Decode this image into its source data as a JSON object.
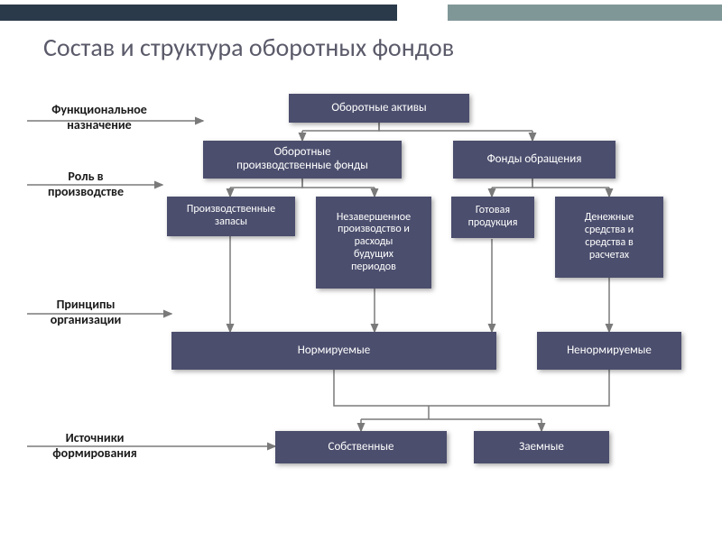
{
  "slide": {
    "title": "Состав и структура оборотных фондов",
    "background_color": "#ffffff",
    "title_color": "#5a5a6a",
    "title_fontsize": 28,
    "box_color": "#4b4e6d",
    "box_text_color": "#ffffff",
    "line_color": "#7a7a7a",
    "side_label_color": "#1a1a1a",
    "topbar_dark": "#2a3a4a",
    "topbar_teal": "#809798"
  },
  "sideLabels": {
    "functional": "Функциональное\nназначение",
    "role": "Роль в\nпроизводстве",
    "principles": "Принципы\nорганизации",
    "sources": "Источники\nформирования"
  },
  "boxes": {
    "topAssets": "Оборотные активы",
    "prodFunds": "Оборотные\nпроизводственные фонды",
    "circFunds": "Фонды обращения",
    "stocks": "Производственные\nзапасы",
    "wip": "Незавершенное\nпроизводство и\nрасходы\nбудущих\nпериодов",
    "finished": "Готовая\nпродукция",
    "cash": "Денежные\nсредства и\nсредства в\nрасчетах",
    "normed": "Нормируемые",
    "notNormed": "Ненормируемые",
    "own": "Собственные",
    "borrowed": "Заемные"
  }
}
